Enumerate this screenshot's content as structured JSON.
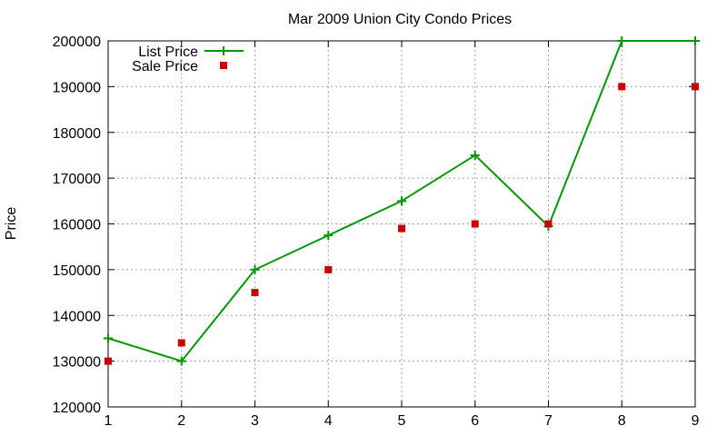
{
  "chart_data": {
    "type": "line",
    "title": "Mar 2009 Union City Condo Prices",
    "xlabel": "",
    "ylabel": "Price",
    "x": [
      1,
      2,
      3,
      4,
      5,
      6,
      7,
      8,
      9
    ],
    "xlim": [
      1,
      9
    ],
    "ylim": [
      120000,
      200000
    ],
    "xticks": [
      "1",
      "2",
      "3",
      "4",
      "5",
      "6",
      "7",
      "8",
      "9"
    ],
    "yticks": [
      "120000",
      "130000",
      "140000",
      "150000",
      "160000",
      "170000",
      "180000",
      "190000",
      "200000"
    ],
    "grid": true,
    "legend_position": "top-left",
    "series": [
      {
        "name": "List Price",
        "style": "line-with-plus-markers",
        "color": "#009900",
        "values": [
          135000,
          130000,
          150000,
          157500,
          165000,
          175000,
          159500,
          200000,
          200000
        ]
      },
      {
        "name": "Sale Price",
        "style": "square-markers",
        "color": "#cc0000",
        "values": [
          130000,
          134000,
          145000,
          150000,
          159000,
          160000,
          160000,
          190000,
          190000
        ]
      }
    ]
  }
}
